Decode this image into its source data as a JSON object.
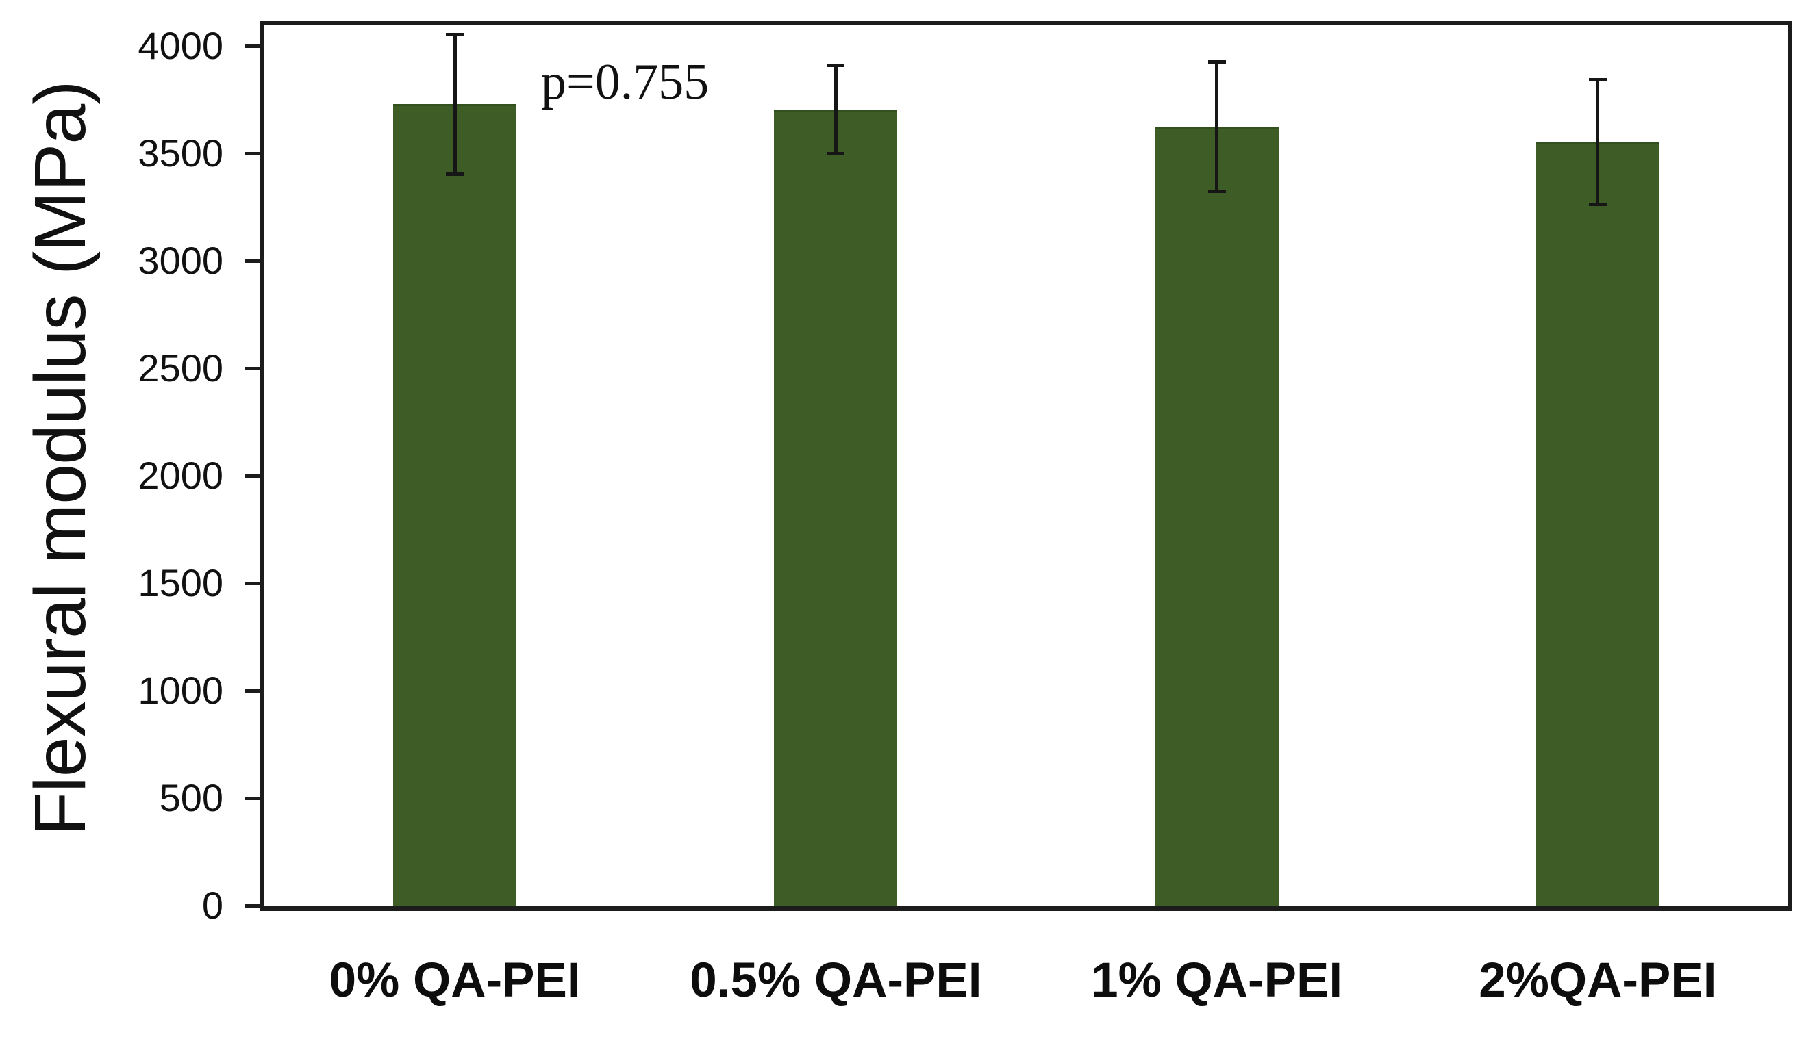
{
  "figure": {
    "background": "#ffffff"
  },
  "chart_data": {
    "type": "bar",
    "title": "",
    "xlabel": "",
    "ylabel": "Flexural modulus (MPa)",
    "categories": [
      "0% QA-PEI",
      "0.5% QA-PEI",
      "1% QA-PEI",
      "2%QA-PEI"
    ],
    "values": [
      3730,
      3705,
      3625,
      3555
    ],
    "error_bars": [
      325,
      205,
      300,
      290
    ],
    "ylim": [
      0,
      4100
    ],
    "yticks": [
      0,
      500,
      1000,
      1500,
      2000,
      2500,
      3000,
      3500,
      4000
    ],
    "grid": false,
    "legend_position": "none",
    "annotation": {
      "text": "p=0.755"
    },
    "colors": {
      "bar_fill": "#3d5c26",
      "bar_edge": "#33511f",
      "axis": "#1c1c1c",
      "error_bar": "#161616",
      "text": "#111111"
    }
  }
}
